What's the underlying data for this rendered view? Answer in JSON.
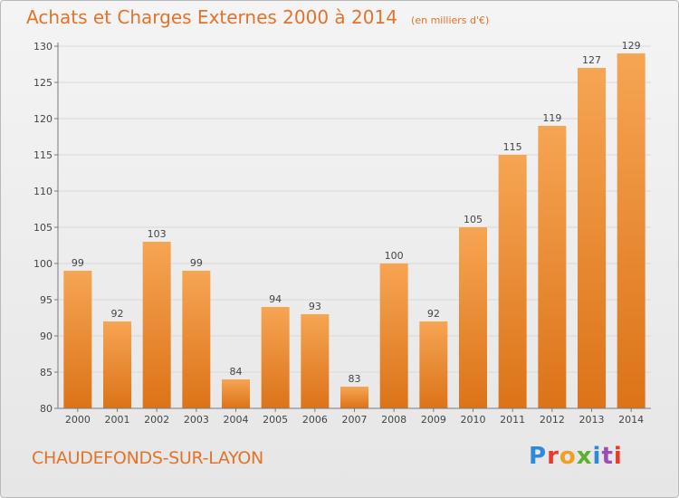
{
  "chart_data": {
    "type": "bar",
    "title": "Achats et Charges Externes 2000 à 2014",
    "unit_note": "(en milliers d'€)",
    "categories": [
      "2000",
      "2001",
      "2002",
      "2003",
      "2004",
      "2005",
      "2006",
      "2007",
      "2008",
      "2009",
      "2010",
      "2011",
      "2012",
      "2013",
      "2014"
    ],
    "values": [
      99,
      92,
      103,
      99,
      84,
      94,
      93,
      83,
      100,
      92,
      105,
      115,
      119,
      127,
      129
    ],
    "ylim": [
      80,
      130
    ],
    "yticks": [
      80,
      85,
      90,
      95,
      100,
      105,
      110,
      115,
      120,
      125,
      130
    ],
    "grid": true,
    "bar_color_top": "#f6a553",
    "bar_color_bottom": "#dc7318",
    "value_labels": true
  },
  "place_name": "CHAUDEFONDS-SUR-LAYON",
  "logo": {
    "letters": [
      "P",
      "r",
      "o",
      "x",
      "i",
      "t",
      "i"
    ]
  },
  "colors": {
    "accent": "#e2732a",
    "gridline": "#d8d8d8",
    "axis": "#7a7a7a"
  }
}
